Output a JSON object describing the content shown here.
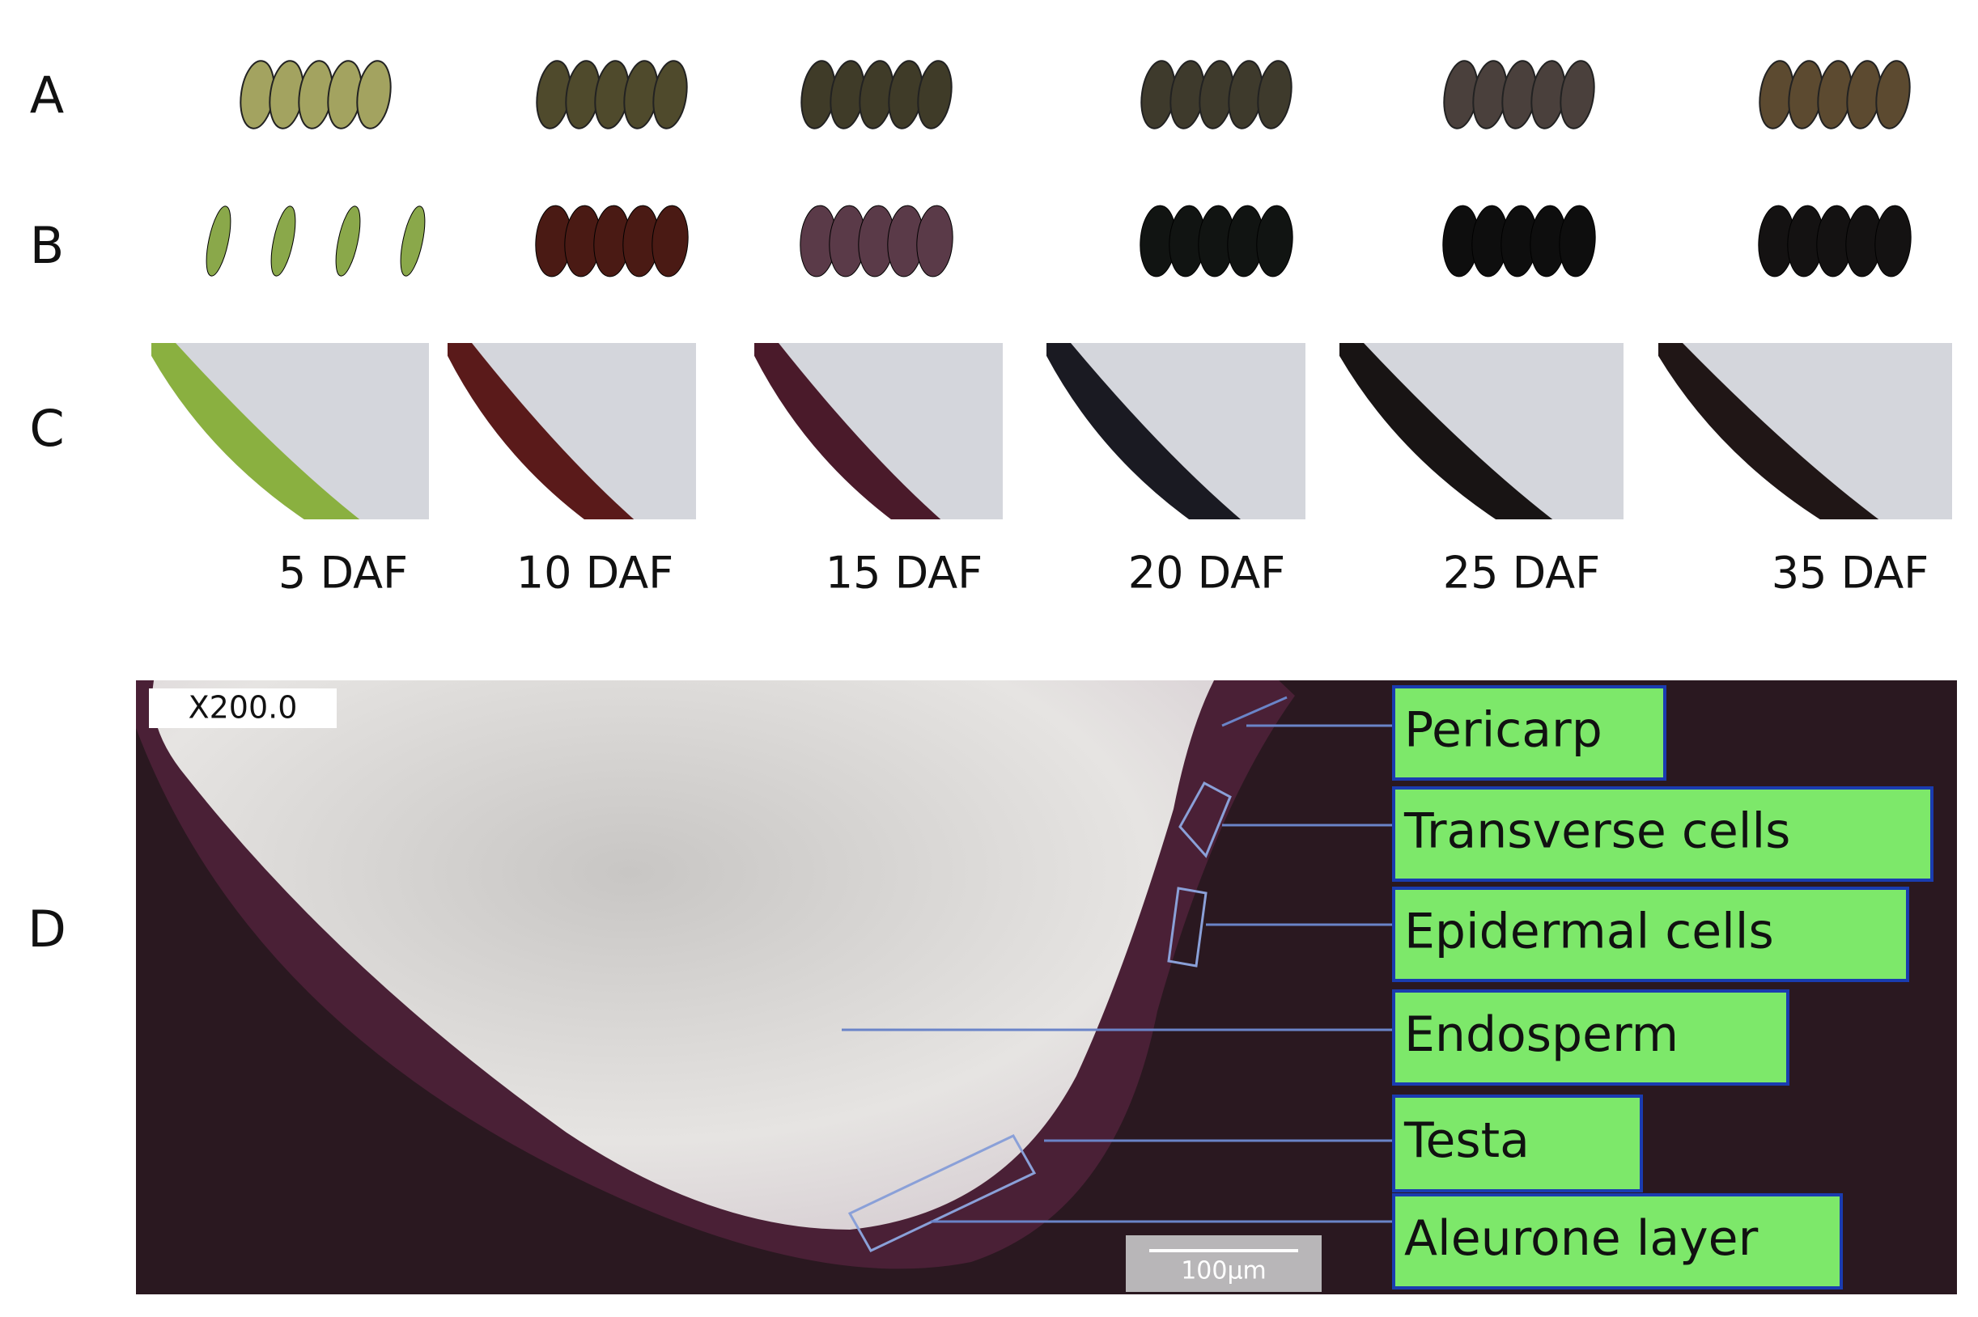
{
  "row_labels": [
    "A",
    "B",
    "C",
    "D"
  ],
  "stages": [
    "5 DAF",
    "10 DAF",
    "15 DAF",
    "20 DAF",
    "25 DAF",
    "35 DAF"
  ],
  "micrograph": {
    "magnification": "X200.0",
    "scale_bar": "100μm",
    "labels": [
      "Pericarp",
      "Transverse cells",
      "Epidermal cells",
      "Endosperm",
      "Testa",
      "Aleurone layer"
    ]
  }
}
